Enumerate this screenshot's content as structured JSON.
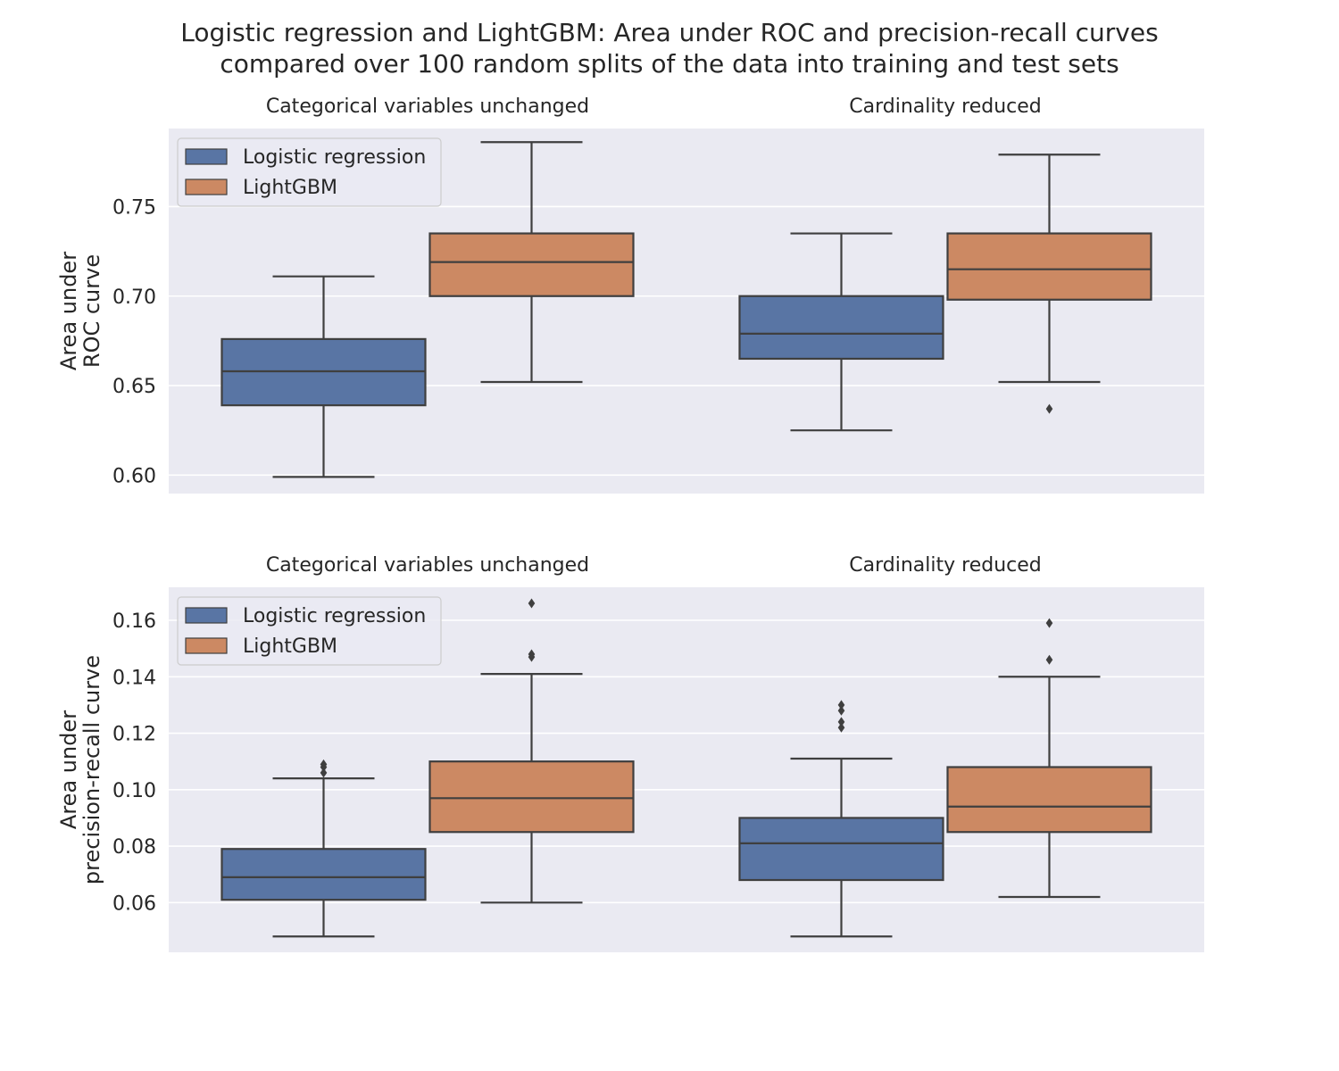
{
  "chart_data": {
    "type": "box",
    "title": [
      "Logistic regression and LightGBM: Area under ROC and precision-recall curves",
      "compared over 100 random splits of the data into training and test sets"
    ],
    "legend": {
      "placement": "top-left",
      "entries": [
        "Logistic regression",
        "LightGBM"
      ]
    },
    "colors": {
      "Logistic regression": "#5975a4",
      "LightGBM": "#cc8963",
      "plot_background": "#eaeaf2",
      "grid": "#ffffff",
      "box_edge": "#3f3f3f"
    },
    "grid": true,
    "rows": [
      {
        "ylabel": [
          "Area under",
          "ROC curve"
        ],
        "ylim": [
          0.5897,
          0.7936
        ],
        "yticks": [
          0.6,
          0.65,
          0.7,
          0.75
        ],
        "ytick_labels": [
          "0.60",
          "0.65",
          "0.70",
          "0.75"
        ],
        "panels": [
          {
            "title": "Categorical variables unchanged",
            "boxes": [
              {
                "name": "Logistic regression",
                "min": 0.599,
                "q1": 0.639,
                "median": 0.658,
                "q3": 0.676,
                "max": 0.711,
                "outliers": []
              },
              {
                "name": "LightGBM",
                "min": 0.652,
                "q1": 0.7,
                "median": 0.719,
                "q3": 0.735,
                "max": 0.786,
                "outliers": []
              }
            ]
          },
          {
            "title": "Cardinality reduced",
            "boxes": [
              {
                "name": "Logistic regression",
                "min": 0.625,
                "q1": 0.665,
                "median": 0.679,
                "q3": 0.7,
                "max": 0.735,
                "outliers": []
              },
              {
                "name": "LightGBM",
                "min": 0.652,
                "q1": 0.698,
                "median": 0.715,
                "q3": 0.735,
                "max": 0.779,
                "outliers": [
                  0.637
                ]
              }
            ]
          }
        ]
      },
      {
        "ylabel": [
          "Area under",
          "precision-recall curve"
        ],
        "ylim": [
          0.0424,
          0.1717
        ],
        "yticks": [
          0.06,
          0.08,
          0.1,
          0.12,
          0.14,
          0.16
        ],
        "ytick_labels": [
          "0.06",
          "0.08",
          "0.10",
          "0.12",
          "0.14",
          "0.16"
        ],
        "panels": [
          {
            "title": "Categorical variables unchanged",
            "boxes": [
              {
                "name": "Logistic regression",
                "min": 0.048,
                "q1": 0.061,
                "median": 0.069,
                "q3": 0.079,
                "max": 0.104,
                "outliers": [
                  0.106,
                  0.108,
                  0.109
                ]
              },
              {
                "name": "LightGBM",
                "min": 0.06,
                "q1": 0.085,
                "median": 0.097,
                "q3": 0.11,
                "max": 0.141,
                "outliers": [
                  0.147,
                  0.148,
                  0.166
                ]
              }
            ]
          },
          {
            "title": "Cardinality reduced",
            "boxes": [
              {
                "name": "Logistic regression",
                "min": 0.048,
                "q1": 0.068,
                "median": 0.081,
                "q3": 0.09,
                "max": 0.111,
                "outliers": [
                  0.122,
                  0.124,
                  0.128,
                  0.13
                ]
              },
              {
                "name": "LightGBM",
                "min": 0.062,
                "q1": 0.085,
                "median": 0.094,
                "q3": 0.108,
                "max": 0.14,
                "outliers": [
                  0.146,
                  0.159
                ]
              }
            ]
          }
        ]
      }
    ]
  }
}
